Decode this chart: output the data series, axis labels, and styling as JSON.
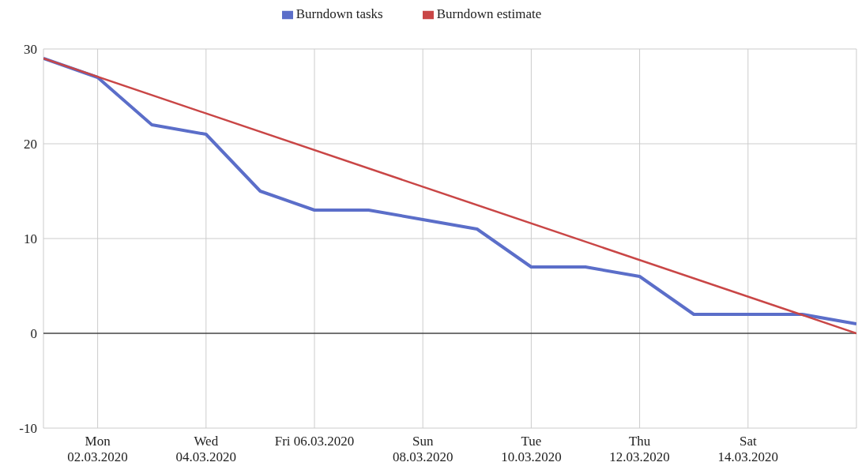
{
  "chart_data": {
    "type": "line",
    "legend": "top",
    "grid": true,
    "xlim": [
      "2020-03-01",
      "2020-03-16"
    ],
    "xticks": [
      {
        "value": "2020-03-02",
        "label": "Mon\n02.03.2020"
      },
      {
        "value": "2020-03-04",
        "label": "Wed\n04.03.2020"
      },
      {
        "value": "2020-03-06",
        "label": "Fri 06.03.2020"
      },
      {
        "value": "2020-03-08",
        "label": "Sun\n08.03.2020"
      },
      {
        "value": "2020-03-10",
        "label": "Tue\n10.03.2020"
      },
      {
        "value": "2020-03-12",
        "label": "Thu\n12.03.2020"
      },
      {
        "value": "2020-03-14",
        "label": "Sat\n14.03.2020"
      }
    ],
    "ylim": [
      -10,
      30
    ],
    "yticks": [
      -10,
      0,
      10,
      20,
      30
    ],
    "ref_lines": [
      {
        "axis": "y",
        "value": 0,
        "color": "#000000"
      }
    ],
    "series": [
      {
        "name": "Burndown tasks",
        "color": "#5b6ec9",
        "x": [
          "2020-03-01",
          "2020-03-02",
          "2020-03-03",
          "2020-03-04",
          "2020-03-05",
          "2020-03-06",
          "2020-03-07",
          "2020-03-08",
          "2020-03-09",
          "2020-03-10",
          "2020-03-11",
          "2020-03-12",
          "2020-03-13",
          "2020-03-14",
          "2020-03-15",
          "2020-03-16"
        ],
        "values": [
          29,
          27,
          22,
          21,
          15,
          13,
          13,
          12,
          11,
          7,
          7,
          6,
          2,
          2,
          2,
          1
        ]
      },
      {
        "name": "Burndown estimate",
        "color": "#c94646",
        "x": [
          "2020-03-01",
          "2020-03-16"
        ],
        "values": [
          29,
          0
        ]
      }
    ]
  }
}
